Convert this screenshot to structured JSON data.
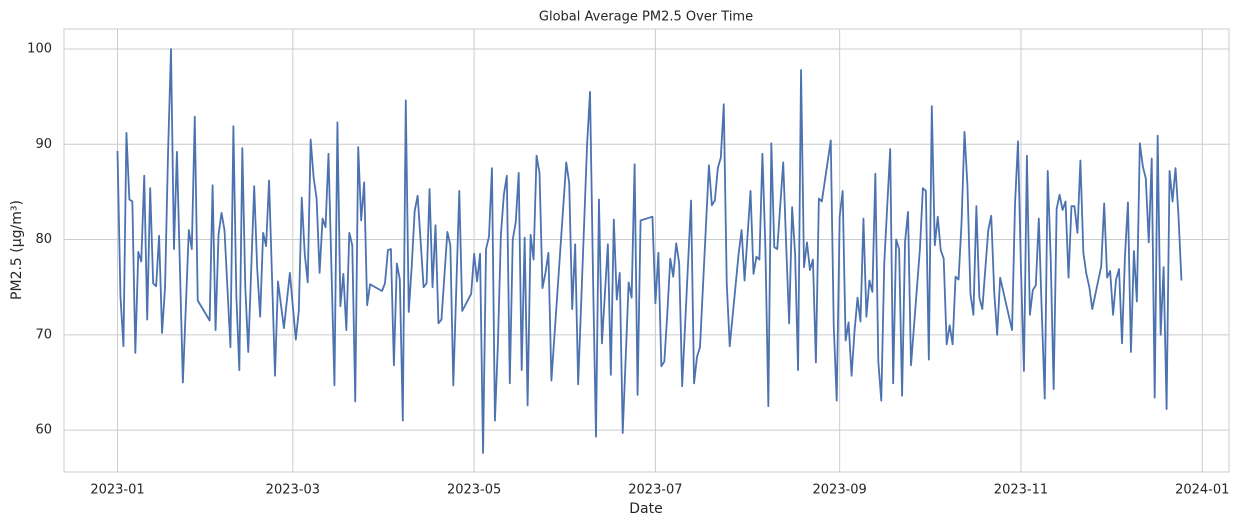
{
  "chart_data": {
    "type": "line",
    "title": "Global Average PM2.5 Over Time",
    "x_label": "Date",
    "y_label": "PM2.5 (µg/m³)",
    "color": "#4c72b0",
    "grid": true,
    "xlim": [
      "2022-12-14",
      "2024-01-10"
    ],
    "xticks": [
      {
        "value": "2023-01-01",
        "label": "2023-01"
      },
      {
        "value": "2023-03-01",
        "label": "2023-03"
      },
      {
        "value": "2023-05-01",
        "label": "2023-05"
      },
      {
        "value": "2023-07-01",
        "label": "2023-07"
      },
      {
        "value": "2023-09-01",
        "label": "2023-09"
      },
      {
        "value": "2023-11-01",
        "label": "2023-11"
      },
      {
        "value": "2024-01-01",
        "label": "2024-01"
      }
    ],
    "ylim": [
      55.6,
      102.1
    ],
    "yticks": [
      60,
      70,
      80,
      90,
      100
    ],
    "x": [
      "2023-01-01",
      "2023-01-02",
      "2023-01-03",
      "2023-01-04",
      "2023-01-05",
      "2023-01-06",
      "2023-01-07",
      "2023-01-08",
      "2023-01-09",
      "2023-01-10",
      "2023-01-11",
      "2023-01-12",
      "2023-01-13",
      "2023-01-14",
      "2023-01-15",
      "2023-01-16",
      "2023-01-17",
      "2023-01-18",
      "2023-01-19",
      "2023-01-20",
      "2023-01-21",
      "2023-01-23",
      "2023-01-25",
      "2023-01-26",
      "2023-01-27",
      "2023-01-28",
      "2023-02-01",
      "2023-02-02",
      "2023-02-03",
      "2023-02-04",
      "2023-02-05",
      "2023-02-06",
      "2023-02-08",
      "2023-02-09",
      "2023-02-10",
      "2023-02-11",
      "2023-02-12",
      "2023-02-13",
      "2023-02-14",
      "2023-02-16",
      "2023-02-17",
      "2023-02-18",
      "2023-02-19",
      "2023-02-20",
      "2023-02-21",
      "2023-02-22",
      "2023-02-23",
      "2023-02-24",
      "2023-02-26",
      "2023-02-28",
      "2023-03-02",
      "2023-03-03",
      "2023-03-04",
      "2023-03-05",
      "2023-03-06",
      "2023-03-07",
      "2023-03-08",
      "2023-03-09",
      "2023-03-10",
      "2023-03-11",
      "2023-03-12",
      "2023-03-13",
      "2023-03-15",
      "2023-03-16",
      "2023-03-17",
      "2023-03-18",
      "2023-03-19",
      "2023-03-20",
      "2023-03-21",
      "2023-03-22",
      "2023-03-23",
      "2023-03-24",
      "2023-03-25",
      "2023-03-26",
      "2023-03-27",
      "2023-03-31",
      "2023-04-01",
      "2023-04-02",
      "2023-04-03",
      "2023-04-04",
      "2023-04-05",
      "2023-04-06",
      "2023-04-07",
      "2023-04-08",
      "2023-04-09",
      "2023-04-10",
      "2023-04-11",
      "2023-04-12",
      "2023-04-14",
      "2023-04-15",
      "2023-04-16",
      "2023-04-17",
      "2023-04-18",
      "2023-04-19",
      "2023-04-20",
      "2023-04-22",
      "2023-04-23",
      "2023-04-24",
      "2023-04-26",
      "2023-04-27",
      "2023-04-30",
      "2023-05-01",
      "2023-05-02",
      "2023-05-03",
      "2023-05-04",
      "2023-05-05",
      "2023-05-06",
      "2023-05-07",
      "2023-05-08",
      "2023-05-09",
      "2023-05-10",
      "2023-05-11",
      "2023-05-12",
      "2023-05-13",
      "2023-05-14",
      "2023-05-15",
      "2023-05-16",
      "2023-05-17",
      "2023-05-18",
      "2023-05-19",
      "2023-05-20",
      "2023-05-21",
      "2023-05-22",
      "2023-05-23",
      "2023-05-24",
      "2023-05-25",
      "2023-05-26",
      "2023-05-27",
      "2023-06-01",
      "2023-06-02",
      "2023-06-03",
      "2023-06-04",
      "2023-06-05",
      "2023-06-08",
      "2023-06-09",
      "2023-06-10",
      "2023-06-11",
      "2023-06-12",
      "2023-06-13",
      "2023-06-15",
      "2023-06-16",
      "2023-06-17",
      "2023-06-18",
      "2023-06-19",
      "2023-06-20",
      "2023-06-22",
      "2023-06-23",
      "2023-06-24",
      "2023-06-25",
      "2023-06-26",
      "2023-06-30",
      "2023-07-01",
      "2023-07-02",
      "2023-07-03",
      "2023-07-04",
      "2023-07-05",
      "2023-07-06",
      "2023-07-07",
      "2023-07-08",
      "2023-07-09",
      "2023-07-10",
      "2023-07-13",
      "2023-07-14",
      "2023-07-15",
      "2023-07-16",
      "2023-07-19",
      "2023-07-20",
      "2023-07-21",
      "2023-07-22",
      "2023-07-23",
      "2023-07-24",
      "2023-07-25",
      "2023-07-26",
      "2023-07-29",
      "2023-07-30",
      "2023-07-31",
      "2023-08-02",
      "2023-08-03",
      "2023-08-04",
      "2023-08-05",
      "2023-08-06",
      "2023-08-07",
      "2023-08-08",
      "2023-08-09",
      "2023-08-10",
      "2023-08-11",
      "2023-08-13",
      "2023-08-14",
      "2023-08-15",
      "2023-08-16",
      "2023-08-17",
      "2023-08-18",
      "2023-08-19",
      "2023-08-20",
      "2023-08-21",
      "2023-08-22",
      "2023-08-23",
      "2023-08-24",
      "2023-08-25",
      "2023-08-26",
      "2023-08-29",
      "2023-08-30",
      "2023-08-31",
      "2023-09-01",
      "2023-09-02",
      "2023-09-03",
      "2023-09-04",
      "2023-09-05",
      "2023-09-06",
      "2023-09-07",
      "2023-09-08",
      "2023-09-09",
      "2023-09-10",
      "2023-09-11",
      "2023-09-12",
      "2023-09-13",
      "2023-09-14",
      "2023-09-15",
      "2023-09-16",
      "2023-09-18",
      "2023-09-19",
      "2023-09-20",
      "2023-09-21",
      "2023-09-22",
      "2023-09-23",
      "2023-09-24",
      "2023-09-25",
      "2023-09-28",
      "2023-09-29",
      "2023-09-30",
      "2023-10-01",
      "2023-10-02",
      "2023-10-03",
      "2023-10-04",
      "2023-10-05",
      "2023-10-06",
      "2023-10-07",
      "2023-10-08",
      "2023-10-09",
      "2023-10-10",
      "2023-10-11",
      "2023-10-12",
      "2023-10-13",
      "2023-10-14",
      "2023-10-15",
      "2023-10-16",
      "2023-10-17",
      "2023-10-18",
      "2023-10-19",
      "2023-10-20",
      "2023-10-21",
      "2023-10-22",
      "2023-10-23",
      "2023-10-24",
      "2023-10-25",
      "2023-10-29",
      "2023-10-30",
      "2023-10-31",
      "2023-11-01",
      "2023-11-02",
      "2023-11-03",
      "2023-11-04",
      "2023-11-05",
      "2023-11-06",
      "2023-11-07",
      "2023-11-08",
      "2023-11-09",
      "2023-11-10",
      "2023-11-11",
      "2023-11-12",
      "2023-11-13",
      "2023-11-14",
      "2023-11-15",
      "2023-11-16",
      "2023-11-17",
      "2023-11-18",
      "2023-11-19",
      "2023-11-20",
      "2023-11-21",
      "2023-11-22",
      "2023-11-23",
      "2023-11-24",
      "2023-11-25",
      "2023-11-28",
      "2023-11-29",
      "2023-11-30",
      "2023-12-01",
      "2023-12-02",
      "2023-12-03",
      "2023-12-04",
      "2023-12-05",
      "2023-12-06",
      "2023-12-07",
      "2023-12-08",
      "2023-12-09",
      "2023-12-10",
      "2023-12-11",
      "2023-12-12",
      "2023-12-13",
      "2023-12-14",
      "2023-12-15",
      "2023-12-16",
      "2023-12-17",
      "2023-12-18",
      "2023-12-19",
      "2023-12-20",
      "2023-12-21",
      "2023-12-22",
      "2023-12-23",
      "2023-12-24",
      "2023-12-25"
    ],
    "values": [
      89.3,
      74,
      68.8,
      91.2,
      84.2,
      84,
      68.1,
      78.7,
      77.7,
      86.7,
      71.6,
      85.4,
      75.4,
      75.1,
      80.4,
      70.2,
      75,
      89,
      100,
      79,
      89.2,
      65,
      81,
      79,
      92.9,
      73.6,
      71.5,
      85.7,
      70.5,
      80.5,
      82.8,
      81,
      68.7,
      91.9,
      74,
      66.3,
      89.6,
      75,
      68.2,
      85.6,
      77,
      71.9,
      80.7,
      79.3,
      86.2,
      76,
      65.7,
      75.6,
      70.7,
      76.5,
      69.5,
      72.5,
      84.4,
      78.5,
      75.5,
      90.5,
      86.5,
      84.3,
      76.5,
      82.2,
      81.3,
      89,
      64.7,
      92.3,
      73,
      76.4,
      70.5,
      80.7,
      79.4,
      63,
      89.7,
      82,
      86,
      73.1,
      75.3,
      74.6,
      75.4,
      78.9,
      79,
      66.8,
      77.5,
      75.8,
      61,
      94.6,
      72.4,
      77.2,
      83,
      84.6,
      75,
      75.4,
      85.3,
      75,
      81.5,
      71.2,
      71.6,
      80.8,
      79.4,
      64.7,
      85.1,
      72.5,
      74.3,
      78.5,
      75.6,
      78.5,
      57.6,
      79,
      80.3,
      87.5,
      61,
      69,
      80.5,
      84.7,
      86.7,
      64.9,
      80,
      81.8,
      87,
      66.3,
      80.2,
      62.6,
      80.5,
      77.9,
      88.8,
      87,
      74.9,
      76.5,
      78.6,
      65.2,
      88.1,
      85.9,
      72.7,
      79.5,
      64.8,
      89.9,
      95.5,
      76.2,
      59.3,
      84.2,
      69.1,
      79.5,
      65.8,
      82.1,
      73.7,
      76.5,
      59.7,
      75.5,
      73.9,
      87.9,
      63.7,
      82,
      82.4,
      73.3,
      78.6,
      66.7,
      67.2,
      72.2,
      78,
      76.1,
      79.6,
      77.5,
      64.6,
      84.1,
      64.9,
      67.7,
      68.7,
      87.8,
      83.6,
      84.1,
      87.5,
      88.6,
      94.2,
      75.4,
      68.8,
      78.5,
      81,
      75.7,
      85.1,
      76.4,
      78.2,
      77.9,
      89,
      79.2,
      62.5,
      90.1,
      79.2,
      79,
      88.1,
      79.4,
      71.2,
      83.4,
      78.5,
      66.3,
      97.8,
      77.1,
      79.7,
      76.8,
      77.9,
      67.1,
      84.3,
      84,
      90.4,
      71,
      63.1,
      82.4,
      85.1,
      69.4,
      71.3,
      65.7,
      70.4,
      73.9,
      71.4,
      82.2,
      71.9,
      75.7,
      74.5,
      86.9,
      67.2,
      63.1,
      77.5,
      89.5,
      64.9,
      80,
      79,
      63.6,
      79.8,
      82.9,
      66.8,
      79,
      85.4,
      85.1,
      67.4,
      94,
      79.4,
      82.4,
      78.9,
      78,
      69,
      71,
      69,
      76.1,
      75.8,
      81.7,
      91.3,
      85.6,
      74.3,
      72.1,
      83.5,
      73.9,
      72.7,
      76.9,
      81,
      82.5,
      74.5,
      70,
      76,
      70.5,
      83.7,
      90.3,
      77,
      66.2,
      88.8,
      72.1,
      74.7,
      75.2,
      82.2,
      72.4,
      63.3,
      87.2,
      78.1,
      64.3,
      83.2,
      84.7,
      83.1,
      84,
      76,
      83.5,
      83.5,
      80.7,
      88.3,
      78.6,
      76.4,
      75,
      72.7,
      77.2,
      83.8,
      76,
      76.7,
      72.1,
      75.8,
      76.9,
      69.1,
      78.3,
      83.9,
      68.2,
      78.8,
      73.5,
      90.1,
      87.7,
      86.4,
      79.7,
      88.5,
      63.4,
      90.9,
      70,
      77.1,
      62.2,
      87.2,
      84,
      87.5,
      82.5,
      75.7
    ]
  }
}
